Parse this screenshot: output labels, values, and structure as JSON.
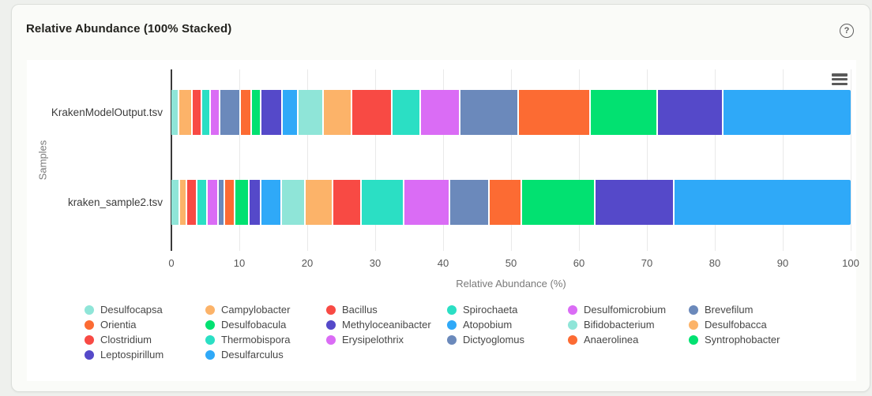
{
  "card": {
    "title": "Relative Abundance (100% Stacked)",
    "help_glyph": "?"
  },
  "chart_data": {
    "type": "bar",
    "stacked": true,
    "percent_stacked": true,
    "orientation": "horizontal",
    "title": "Relative Abundance (100% Stacked)",
    "xlabel": "Relative Abundance (%)",
    "ylabel": "Samples",
    "xlim": [
      0,
      100
    ],
    "x_ticks": [
      0,
      10,
      20,
      30,
      40,
      50,
      60,
      70,
      80,
      90,
      100
    ],
    "grid": true,
    "legend_position": "bottom",
    "categories": [
      "KrakenModelOutput.tsv",
      "kraken_sample2.tsv"
    ],
    "series": [
      {
        "name": "Desulfocapsa",
        "color": "#8FE5D8",
        "values": [
          1.2,
          1.3
        ]
      },
      {
        "name": "Campylobacter",
        "color": "#FCB369",
        "values": [
          1.9,
          1.0
        ]
      },
      {
        "name": "Bacillus",
        "color": "#F84A44",
        "values": [
          1.4,
          1.5
        ]
      },
      {
        "name": "Spirochaeta",
        "color": "#2BDFC4",
        "values": [
          1.3,
          1.6
        ]
      },
      {
        "name": "Desulfomicrobium",
        "color": "#DA6CF5",
        "values": [
          1.4,
          1.6
        ]
      },
      {
        "name": "Brevefilum",
        "color": "#6B89BB",
        "values": [
          3.0,
          0.9
        ]
      },
      {
        "name": "Orientia",
        "color": "#FC6B33",
        "values": [
          1.7,
          1.5
        ]
      },
      {
        "name": "Desulfobacula",
        "color": "#02E171",
        "values": [
          1.4,
          2.1
        ]
      },
      {
        "name": "Methyloceanibacter",
        "color": "#5549C9",
        "values": [
          3.1,
          1.8
        ]
      },
      {
        "name": "Atopobium",
        "color": "#2FA9F8",
        "values": [
          2.3,
          3.0
        ]
      },
      {
        "name": "Bifidobacterium",
        "color": "#8FE5D8",
        "values": [
          3.7,
          3.5
        ]
      },
      {
        "name": "Desulfobacca",
        "color": "#FCB369",
        "values": [
          4.2,
          4.0
        ]
      },
      {
        "name": "Clostridium",
        "color": "#F84A44",
        "values": [
          6.0,
          4.2
        ]
      },
      {
        "name": "Thermobispora",
        "color": "#2BDFC4",
        "values": [
          4.1,
          6.3
        ]
      },
      {
        "name": "Erysipelothrix",
        "color": "#DA6CF5",
        "values": [
          5.9,
          6.8
        ]
      },
      {
        "name": "Dictyoglomus",
        "color": "#6B89BB",
        "values": [
          8.6,
          5.8
        ]
      },
      {
        "name": "Anaerolinea",
        "color": "#FC6B33",
        "values": [
          10.6,
          4.7
        ]
      },
      {
        "name": "Syntrophobacter",
        "color": "#02E171",
        "values": [
          9.8,
          10.9
        ]
      },
      {
        "name": "Leptospirillum",
        "color": "#5549C9",
        "values": [
          9.7,
          11.6
        ]
      },
      {
        "name": "Desulfarculus",
        "color": "#2FA9F8",
        "values": [
          18.7,
          25.9
        ]
      }
    ]
  }
}
